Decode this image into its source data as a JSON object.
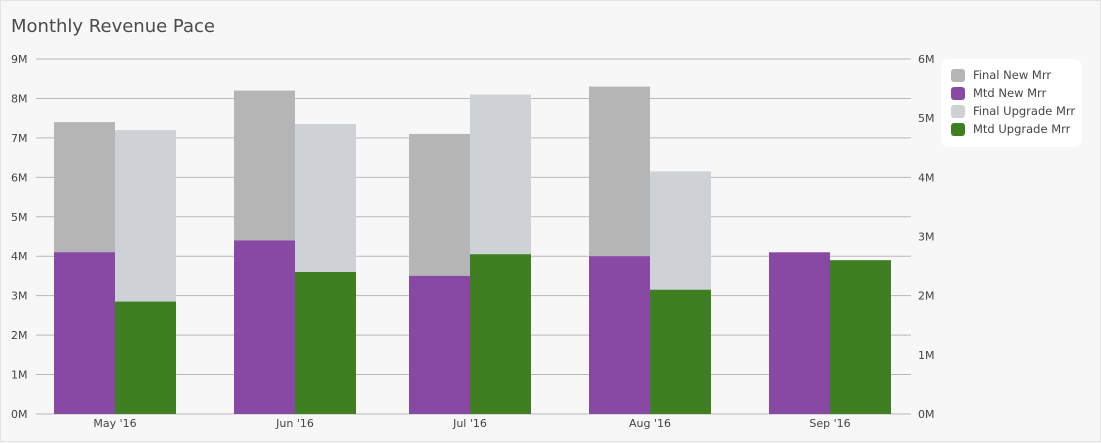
{
  "title": "Monthly Revenue Pace",
  "legend": [
    {
      "label": "Final New Mrr",
      "color": "#b5b5b5"
    },
    {
      "label": "Mtd New Mrr",
      "color": "#8849a5"
    },
    {
      "label": "Final Upgrade Mrr",
      "color": "#ced1d5"
    },
    {
      "label": "Mtd Upgrade Mrr",
      "color": "#3e7f22"
    }
  ],
  "chart_data": {
    "type": "bar",
    "title": "Monthly Revenue Pace",
    "categories": [
      "May '16",
      "Jun '16",
      "Jul '16",
      "Aug '16",
      "Sep '16"
    ],
    "left_axis": {
      "ticks": [
        "0M",
        "1M",
        "2M",
        "3M",
        "4M",
        "5M",
        "6M",
        "7M",
        "8M",
        "9M"
      ],
      "ylim": [
        0,
        9000000
      ]
    },
    "right_axis": {
      "ticks": [
        "0M",
        "1M",
        "2M",
        "3M",
        "4M",
        "5M",
        "6M"
      ],
      "ylim": [
        0,
        6000000
      ]
    },
    "grid": true,
    "legend_position": "top-right",
    "series": [
      {
        "name": "Final New Mrr",
        "axis": "left",
        "group": "new",
        "color": "#b5b5b5",
        "values": [
          7400000,
          8200000,
          7100000,
          8300000,
          null
        ]
      },
      {
        "name": "Mtd New Mrr",
        "axis": "left",
        "group": "new",
        "color": "#8849a5",
        "values": [
          4100000,
          4400000,
          3500000,
          4000000,
          4100000
        ]
      },
      {
        "name": "Final Upgrade Mrr",
        "axis": "right",
        "group": "upgrade",
        "color": "#ced1d5",
        "values": [
          4800000,
          4900000,
          5400000,
          4100000,
          null
        ]
      },
      {
        "name": "Mtd Upgrade Mrr",
        "axis": "right",
        "group": "upgrade",
        "color": "#3e7f22",
        "values": [
          1900000,
          2400000,
          2700000,
          2100000,
          2600000
        ]
      }
    ]
  }
}
